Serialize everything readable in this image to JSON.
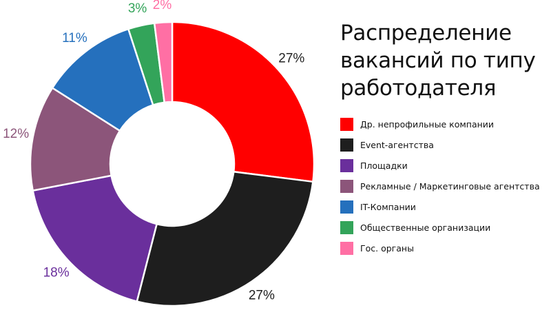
{
  "title_lines": [
    "Распределение",
    "вакансий по типу",
    "работодателя"
  ],
  "chart_data": {
    "type": "pie",
    "style": "donut",
    "title": "Распределение вакансий по типу работодателя",
    "categories": [
      "Др. непрофильные компании",
      "Event-агентства",
      "Площадки",
      "Рекламные / Маркетинговые агентства",
      "IT-Компании",
      "Общественные организации",
      "Гос. органы"
    ],
    "values": [
      27,
      27,
      18,
      12,
      11,
      3,
      2
    ],
    "labels": [
      "27%",
      "27%",
      "18%",
      "12%",
      "11%",
      "3%",
      "2%"
    ],
    "colors": [
      "#ff0000",
      "#1e1e1e",
      "#6a2f9c",
      "#8c557a",
      "#2570bd",
      "#33a45a",
      "#ff6fa4"
    ],
    "legend_position": "right"
  }
}
